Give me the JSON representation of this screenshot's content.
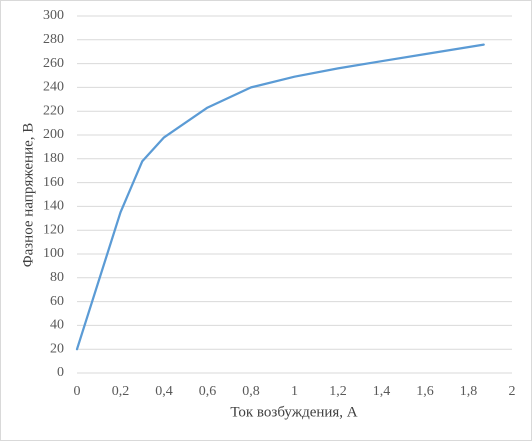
{
  "chart_data": {
    "type": "line",
    "x_label": "Ток возбуждения, А",
    "y_label": "Фазное напряжение, В",
    "series": [
      {
        "color": "#5b9bd5",
        "x": [
          0,
          0.2,
          0.3,
          0.4,
          0.6,
          0.8,
          1.0,
          1.2,
          1.4,
          1.6,
          1.87
        ],
        "values": [
          20,
          135,
          178,
          198,
          223,
          240,
          249,
          256,
          262,
          268,
          276
        ]
      }
    ],
    "xlim": [
      0,
      2
    ],
    "xticks": [
      0,
      {
        "value": 0.2,
        "label": "0,2"
      },
      {
        "value": 0.4,
        "label": "0,4"
      },
      {
        "value": 0.6,
        "label": "0,6"
      },
      {
        "value": 0.8,
        "label": "0,8"
      },
      1,
      {
        "value": 1.2,
        "label": "1,2"
      },
      {
        "value": 1.4,
        "label": "1,4"
      },
      {
        "value": 1.6,
        "label": "1,6"
      },
      {
        "value": 1.8,
        "label": "1,8"
      },
      2
    ],
    "ylim": [
      0,
      300
    ],
    "yticks": [
      0,
      20,
      40,
      60,
      80,
      100,
      120,
      140,
      160,
      180,
      200,
      220,
      240,
      260,
      280,
      300
    ],
    "grid": true
  }
}
